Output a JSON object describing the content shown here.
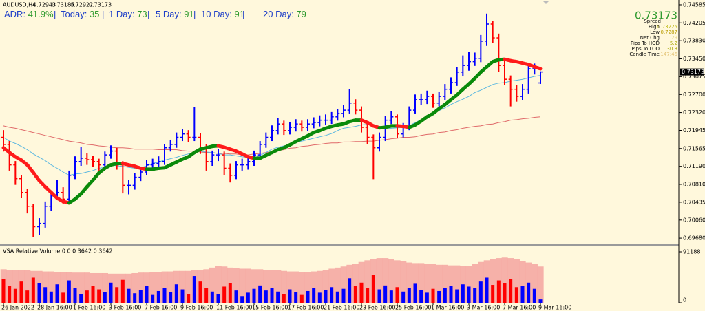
{
  "chart_data": {
    "type": "ohlc",
    "symbol": "AUDUSD,H4",
    "up_color": "#0000ff",
    "down_color": "#ff0000",
    "stats_separator": "|",
    "stats": [
      {
        "label": "ADR:",
        "value": "41.9%"
      },
      {
        "label": "Today:",
        "value": 35
      },
      {
        "label": "1 Day:",
        "value": 73
      },
      {
        "label": "5 Day:",
        "value": 91
      },
      {
        "label": "10 Day:",
        "value": 91
      },
      {
        "label": "20 Day:",
        "value": 79
      }
    ],
    "info": [
      {
        "label": "Spread"
      },
      {
        "label": "High",
        "value": 0.73225,
        "color": "#b8b400"
      },
      {
        "label": "Low",
        "value": 0.7287,
        "color": "#b89c00"
      },
      {
        "label": "Net Chg",
        "value": 29,
        "color": "#e0d27a"
      },
      {
        "label": "Pips To HOD",
        "value": 5.2,
        "color": "#a8a800"
      },
      {
        "label": "Pips To LOD",
        "value": 30.3,
        "color": "#a8a800"
      },
      {
        "label": "Candle Time",
        "value": "147:46",
        "color": "#e2c070"
      }
    ],
    "price_color": "#2e9a2e",
    "categories": [
      "26 Jan 2022",
      null,
      null,
      null,
      null,
      null,
      "28 Jan 16:00",
      null,
      null,
      null,
      null,
      null,
      "1 Feb 16:00",
      null,
      null,
      null,
      null,
      null,
      "3 Feb 16:00",
      null,
      null,
      null,
      null,
      null,
      "7 Feb 16:00",
      null,
      null,
      null,
      null,
      null,
      "9 Feb 16:00",
      null,
      null,
      null,
      null,
      null,
      "11 Feb 16:00",
      null,
      null,
      null,
      null,
      null,
      "15 Feb 16:00",
      null,
      null,
      null,
      null,
      null,
      "17 Feb 16:00",
      null,
      null,
      null,
      null,
      null,
      "21 Feb 16:00",
      null,
      null,
      null,
      null,
      null,
      "23 Feb 16:00",
      null,
      null,
      null,
      null,
      null,
      "25 Feb 16:00",
      null,
      null,
      null,
      null,
      null,
      "1 Mar 16:00",
      null,
      null,
      null,
      null,
      null,
      "3 Mar 16:00",
      null,
      null,
      null,
      null,
      null,
      "7 Mar 16:00",
      null,
      null,
      null,
      null,
      null,
      "9 Mar 16:00"
    ],
    "open": [
      0.718,
      0.7165,
      0.7122,
      0.7093,
      0.7064,
      0.7035,
      0.6992,
      0.6999,
      0.7035,
      0.7057,
      0.7064,
      0.705,
      0.71,
      0.7129,
      0.7136,
      0.7133,
      0.7129,
      0.7122,
      0.7143,
      0.7151,
      0.7122,
      0.7079,
      0.7079,
      0.7096,
      0.7107,
      0.7122,
      0.7125,
      0.7129,
      0.7158,
      0.7165,
      0.718,
      0.7187,
      0.718,
      0.718,
      0.7158,
      0.7129,
      0.7143,
      0.7143,
      0.7115,
      0.71,
      0.7122,
      0.7122,
      0.7129,
      0.7143,
      0.7165,
      0.718,
      0.7194,
      0.7208,
      0.7194,
      0.7201,
      0.7208,
      0.7201,
      0.7208,
      0.7211,
      0.7216,
      0.7216,
      0.7223,
      0.723,
      0.7237,
      0.7252,
      0.7237,
      0.7201,
      0.718,
      0.7158,
      0.718,
      0.7216,
      0.7223,
      0.7187,
      0.7201,
      0.7237,
      0.7259,
      0.7259,
      0.7266,
      0.7252,
      0.7266,
      0.7281,
      0.7295,
      0.7317,
      0.7331,
      0.7339,
      0.7346,
      0.7382,
      0.7418,
      0.7389,
      0.7331,
      0.7302,
      0.7281,
      0.7266,
      0.7281,
      0.7324,
      0.72943
    ],
    "high": [
      0.7195,
      0.7172,
      0.713,
      0.7101,
      0.7072,
      0.704,
      0.701,
      0.7045,
      0.7068,
      0.709,
      0.7075,
      0.711,
      0.714,
      0.716,
      0.7146,
      0.7141,
      0.7135,
      0.715,
      0.7163,
      0.7158,
      0.713,
      0.709,
      0.7105,
      0.7118,
      0.7132,
      0.7135,
      0.714,
      0.7166,
      0.7175,
      0.719,
      0.7198,
      0.7195,
      0.7244,
      0.7188,
      0.7165,
      0.7152,
      0.7155,
      0.715,
      0.7125,
      0.713,
      0.7135,
      0.714,
      0.7152,
      0.7172,
      0.719,
      0.7205,
      0.722,
      0.7215,
      0.7212,
      0.7218,
      0.7215,
      0.7218,
      0.7222,
      0.7226,
      0.7228,
      0.7233,
      0.724,
      0.7248,
      0.7281,
      0.726,
      0.7245,
      0.7208,
      0.7186,
      0.719,
      0.7225,
      0.7235,
      0.7228,
      0.721,
      0.7245,
      0.727,
      0.7272,
      0.7278,
      0.7272,
      0.7276,
      0.7292,
      0.7306,
      0.7328,
      0.7352,
      0.736,
      0.7358,
      0.7395,
      0.744,
      0.7425,
      0.7398,
      0.734,
      0.731,
      0.729,
      0.7292,
      0.7332,
      0.7335,
      0.73185
    ],
    "low": [
      0.715,
      0.711,
      0.708,
      0.7052,
      0.702,
      0.697,
      0.6975,
      0.699,
      0.7025,
      0.7048,
      0.704,
      0.7044,
      0.7092,
      0.712,
      0.7122,
      0.7118,
      0.711,
      0.7115,
      0.7135,
      0.7112,
      0.7062,
      0.706,
      0.707,
      0.7088,
      0.71,
      0.7113,
      0.7118,
      0.7122,
      0.715,
      0.7158,
      0.7172,
      0.717,
      0.7172,
      0.7145,
      0.711,
      0.712,
      0.713,
      0.71,
      0.7085,
      0.7092,
      0.711,
      0.7112,
      0.712,
      0.7136,
      0.7158,
      0.7172,
      0.7186,
      0.7185,
      0.7186,
      0.7192,
      0.7192,
      0.7193,
      0.7199,
      0.7203,
      0.7206,
      0.7208,
      0.7215,
      0.7222,
      0.723,
      0.7228,
      0.719,
      0.7165,
      0.7092,
      0.715,
      0.7172,
      0.7208,
      0.7178,
      0.718,
      0.7195,
      0.723,
      0.7248,
      0.725,
      0.7242,
      0.7245,
      0.7258,
      0.7272,
      0.7288,
      0.7308,
      0.732,
      0.733,
      0.7338,
      0.7372,
      0.7378,
      0.7318,
      0.729,
      0.7245,
      0.7255,
      0.7258,
      0.7272,
      0.7312,
      0.72922
    ],
    "close": [
      0.7165,
      0.7122,
      0.7093,
      0.7064,
      0.7035,
      0.6992,
      0.6999,
      0.7035,
      0.7057,
      0.7064,
      0.705,
      0.71,
      0.7129,
      0.7136,
      0.7133,
      0.7129,
      0.7122,
      0.7143,
      0.7151,
      0.7122,
      0.7079,
      0.7079,
      0.7096,
      0.7107,
      0.7122,
      0.7125,
      0.7129,
      0.7158,
      0.7165,
      0.718,
      0.7187,
      0.718,
      0.718,
      0.7158,
      0.7129,
      0.7143,
      0.7143,
      0.7115,
      0.71,
      0.7122,
      0.7122,
      0.7129,
      0.7143,
      0.7165,
      0.718,
      0.7194,
      0.7208,
      0.7194,
      0.7201,
      0.7208,
      0.7201,
      0.7208,
      0.7211,
      0.7216,
      0.7216,
      0.7223,
      0.723,
      0.7237,
      0.7252,
      0.7237,
      0.7201,
      0.718,
      0.7158,
      0.718,
      0.7216,
      0.7223,
      0.7187,
      0.7201,
      0.7237,
      0.7259,
      0.7259,
      0.7266,
      0.7252,
      0.7266,
      0.7281,
      0.7295,
      0.7317,
      0.7331,
      0.7339,
      0.7346,
      0.7382,
      0.7418,
      0.7389,
      0.7331,
      0.7302,
      0.7281,
      0.7266,
      0.7281,
      0.7324,
      0.7324,
      0.73173
    ],
    "overlays": [
      {
        "color": "#e06a6a",
        "values": [
          0.7204,
          0.7201,
          0.7199,
          0.7196,
          0.7193,
          0.719,
          0.7187,
          0.7184,
          0.7181,
          0.7178,
          0.7175,
          0.7172,
          0.717,
          0.7168,
          0.7165,
          0.7164,
          0.7162,
          0.7161,
          0.7159,
          0.7158,
          0.7158,
          0.7157,
          0.7155,
          0.7155,
          0.7155,
          0.7155,
          0.7154,
          0.7154,
          0.7154,
          0.7154,
          0.7152,
          0.7151,
          0.7151,
          0.7149,
          0.7148,
          0.7148,
          0.7146,
          0.7146,
          0.7145,
          0.7145,
          0.7143,
          0.7143,
          0.7145,
          0.7146,
          0.7148,
          0.7149,
          0.7152,
          0.7154,
          0.7157,
          0.7158,
          0.7161,
          0.7162,
          0.7164,
          0.7165,
          0.7167,
          0.7168,
          0.7168,
          0.717,
          0.717,
          0.7171,
          0.7171,
          0.7172,
          0.7172,
          0.7174,
          0.7175,
          0.7177,
          0.7178,
          0.718,
          0.718,
          0.7181,
          0.7184,
          0.7186,
          0.7187,
          0.719,
          0.7191,
          0.7194,
          0.7196,
          0.7199,
          0.7201,
          0.7203,
          0.7204,
          0.7207,
          0.7208,
          0.7211,
          0.7213,
          0.7216,
          0.7217,
          0.7219,
          0.722,
          0.7222,
          0.7223
        ]
      },
      {
        "color": "#5cb8e0",
        "values": [
          0.718,
          0.7172,
          0.7167,
          0.7161,
          0.7154,
          0.7145,
          0.7138,
          0.7131,
          0.7122,
          0.7115,
          0.7107,
          0.71,
          0.7103,
          0.7104,
          0.7107,
          0.711,
          0.7115,
          0.7117,
          0.7122,
          0.712,
          0.7119,
          0.7117,
          0.7115,
          0.7116,
          0.712,
          0.7125,
          0.7128,
          0.7132,
          0.7135,
          0.7138,
          0.7142,
          0.7145,
          0.7148,
          0.7151,
          0.7149,
          0.7148,
          0.7146,
          0.7143,
          0.7143,
          0.7141,
          0.7139,
          0.7138,
          0.7136,
          0.7142,
          0.7148,
          0.7155,
          0.7159,
          0.7162,
          0.7165,
          0.717,
          0.7172,
          0.7175,
          0.7178,
          0.7181,
          0.7184,
          0.7188,
          0.7194,
          0.7199,
          0.7201,
          0.7203,
          0.7206,
          0.7207,
          0.7207,
          0.7203,
          0.7197,
          0.7199,
          0.72,
          0.7201,
          0.7204,
          0.7211,
          0.7217,
          0.7223,
          0.723,
          0.7236,
          0.7242,
          0.7249,
          0.7255,
          0.726,
          0.7266,
          0.7274,
          0.7279,
          0.7285,
          0.7291,
          0.7294,
          0.7295,
          0.7298,
          0.73,
          0.7302,
          0.7305,
          0.7308,
          0.731
        ]
      }
    ],
    "trend": {
      "up_color": "#0a8a0a",
      "down_color": "#ff1a1a",
      "values": [
        0.7158,
        0.7148,
        0.7139,
        0.7132,
        0.7122,
        0.7106,
        0.7089,
        0.7076,
        0.7064,
        0.7052,
        0.7045,
        0.7042,
        0.705,
        0.7061,
        0.7076,
        0.709,
        0.7105,
        0.7115,
        0.7122,
        0.7125,
        0.7125,
        0.7122,
        0.7119,
        0.7115,
        0.7113,
        0.7113,
        0.7115,
        0.7116,
        0.7122,
        0.7128,
        0.7134,
        0.7139,
        0.7148,
        0.7155,
        0.7158,
        0.7161,
        0.7162,
        0.7159,
        0.7155,
        0.7151,
        0.7145,
        0.7139,
        0.7136,
        0.7136,
        0.7142,
        0.7148,
        0.7154,
        0.7158,
        0.7164,
        0.7171,
        0.7177,
        0.7183,
        0.719,
        0.7194,
        0.7199,
        0.7203,
        0.7206,
        0.7208,
        0.7213,
        0.7216,
        0.7216,
        0.7211,
        0.7204,
        0.72,
        0.7201,
        0.7204,
        0.7204,
        0.7203,
        0.7201,
        0.7206,
        0.7214,
        0.7223,
        0.723,
        0.724,
        0.7249,
        0.7259,
        0.7269,
        0.7281,
        0.7292,
        0.7304,
        0.7317,
        0.7328,
        0.7339,
        0.7343,
        0.7344,
        0.7341,
        0.7339,
        0.7336,
        0.7333,
        0.7328,
        0.7324
      ]
    },
    "ylim": [
      0.6958,
      0.74686
    ],
    "yticks": [
      0.74585,
      0.74205,
      {
        "value": 0.7383,
        "label": "0.73830"
      },
      {
        "value": 0.7345,
        "label": "0.73450"
      },
      0.73075,
      {
        "value": 0.727,
        "label": "0.72700"
      },
      {
        "value": 0.7232,
        "label": "0.72320"
      },
      0.71945,
      0.71565,
      {
        "value": 0.7119,
        "label": "0.71190"
      },
      {
        "value": 0.7081,
        "label": "0.70810"
      },
      0.70435,
      {
        "value": 0.7006,
        "label": "0.70060"
      },
      {
        "value": 0.6968,
        "label": "0.69680"
      }
    ],
    "volume": {
      "title": "VSA Relative Volume 0 0 0 3642 0 3642",
      "ylim": [
        0,
        91188
      ],
      "yticks": [
        91188,
        0
      ],
      "band_color": "#f4a4a0",
      "band": [
        60000,
        59000,
        59000,
        58000,
        58000,
        57000,
        57000,
        56000,
        56000,
        55000,
        55000,
        55000,
        54000,
        54000,
        54000,
        53000,
        53000,
        53000,
        52000,
        52000,
        52000,
        52000,
        53000,
        54000,
        54000,
        55000,
        55000,
        56000,
        56000,
        57000,
        57000,
        57000,
        58000,
        58000,
        60000,
        63000,
        66000,
        65000,
        63000,
        62000,
        61000,
        61000,
        60000,
        60000,
        59000,
        58000,
        58000,
        57000,
        56000,
        56000,
        55000,
        55000,
        56000,
        57000,
        59000,
        61000,
        63000,
        65000,
        68000,
        70000,
        73000,
        76000,
        78000,
        80000,
        80000,
        78000,
        76000,
        74000,
        72000,
        71000,
        71000,
        70000,
        69000,
        68000,
        68000,
        67000,
        67000,
        66000,
        66000,
        70000,
        73000,
        76000,
        78000,
        80000,
        81000,
        80000,
        78000,
        75000,
        72000,
        69000,
        65000
      ],
      "values": [
        42000,
        30000,
        25000,
        38000,
        22000,
        45000,
        35000,
        28000,
        20000,
        33000,
        18000,
        40000,
        26000,
        15000,
        22000,
        30000,
        24000,
        19000,
        36000,
        28000,
        41000,
        25000,
        17000,
        23000,
        30000,
        14000,
        21000,
        27000,
        19000,
        33000,
        24000,
        16000,
        48000,
        38000,
        26000,
        20000,
        15000,
        29000,
        35000,
        22000,
        12000,
        18000,
        25000,
        31000,
        22000,
        27000,
        20000,
        16000,
        24000,
        19000,
        14000,
        21000,
        26000,
        18000,
        23000,
        28000,
        20000,
        25000,
        44000,
        30000,
        36000,
        27000,
        50000,
        24000,
        31000,
        22000,
        28000,
        20000,
        26000,
        34000,
        23000,
        18000,
        25000,
        21000,
        27000,
        30000,
        24000,
        33000,
        29000,
        26000,
        38000,
        45000,
        32000,
        40000,
        35000,
        42000,
        28000,
        30000,
        36000,
        25000,
        6000
      ]
    }
  }
}
